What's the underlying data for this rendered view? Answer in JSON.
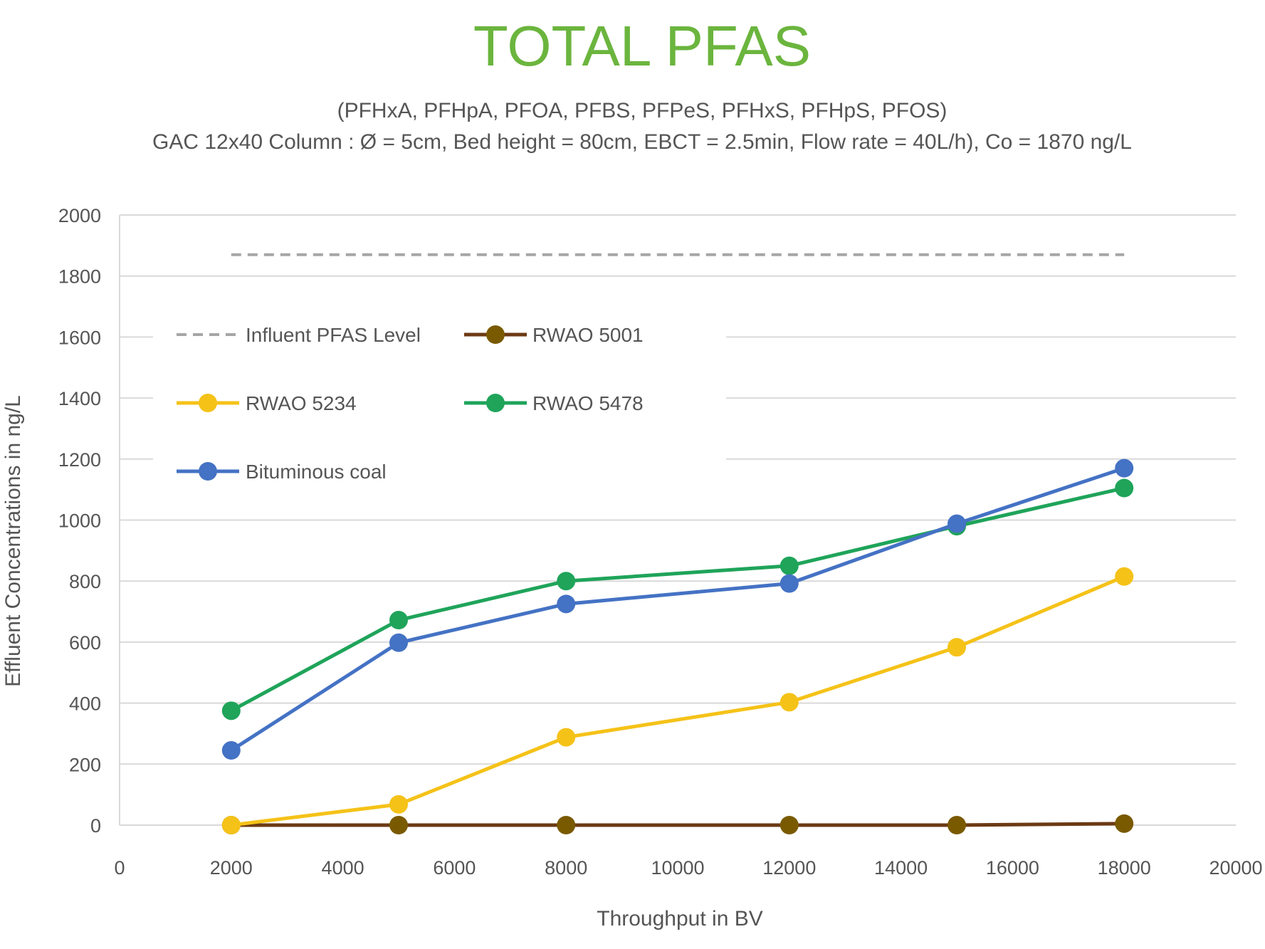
{
  "chart_data": {
    "type": "line",
    "title": "TOTAL PFAS",
    "subtitle_lines": [
      "(PFHxA, PFHpA, PFOA, PFBS, PFPeS, PFHxS, PFHpS, PFOS)",
      "GAC 12x40 Column : Ø = 5cm, Bed height = 80cm, EBCT = 2.5min, Flow rate = 40L/h), Co = 1870 ng/L"
    ],
    "xlabel": "Throughput in BV",
    "ylabel": "Effluent Concentrations in ng/L",
    "xlim": [
      0,
      20000
    ],
    "ylim": [
      0,
      2000
    ],
    "x_ticks": [
      0,
      2000,
      4000,
      6000,
      8000,
      10000,
      12000,
      14000,
      16000,
      18000,
      20000
    ],
    "y_ticks": [
      0,
      200,
      400,
      600,
      800,
      1000,
      1200,
      1400,
      1600,
      1800,
      2000
    ],
    "grid": true,
    "legend_location": "upper-left",
    "x": [
      2000,
      5000,
      8000,
      12000,
      15000,
      18000
    ],
    "series": [
      {
        "name": "Influent PFAS Level",
        "color": "#a6a6a6",
        "style": "dashed",
        "x": [
          2000,
          18000
        ],
        "values": [
          1870,
          1870
        ]
      },
      {
        "name": "RWAO 5001",
        "color": "#7a5a00",
        "line_color": "#6b3a14",
        "style": "solid-markers",
        "values": [
          0,
          0,
          0,
          0,
          0,
          5
        ]
      },
      {
        "name": "RWAO 5234",
        "color": "#f5c218",
        "style": "solid-markers",
        "values": [
          0,
          68,
          288,
          403,
          583,
          815
        ]
      },
      {
        "name": "RWAO 5478",
        "color": "#1fa45a",
        "style": "solid-markers",
        "values": [
          375,
          672,
          800,
          850,
          980,
          1105
        ]
      },
      {
        "name": "Bituminous coal",
        "color": "#4472c4",
        "style": "solid-markers",
        "values": [
          245,
          598,
          725,
          792,
          988,
          1170
        ]
      }
    ]
  }
}
